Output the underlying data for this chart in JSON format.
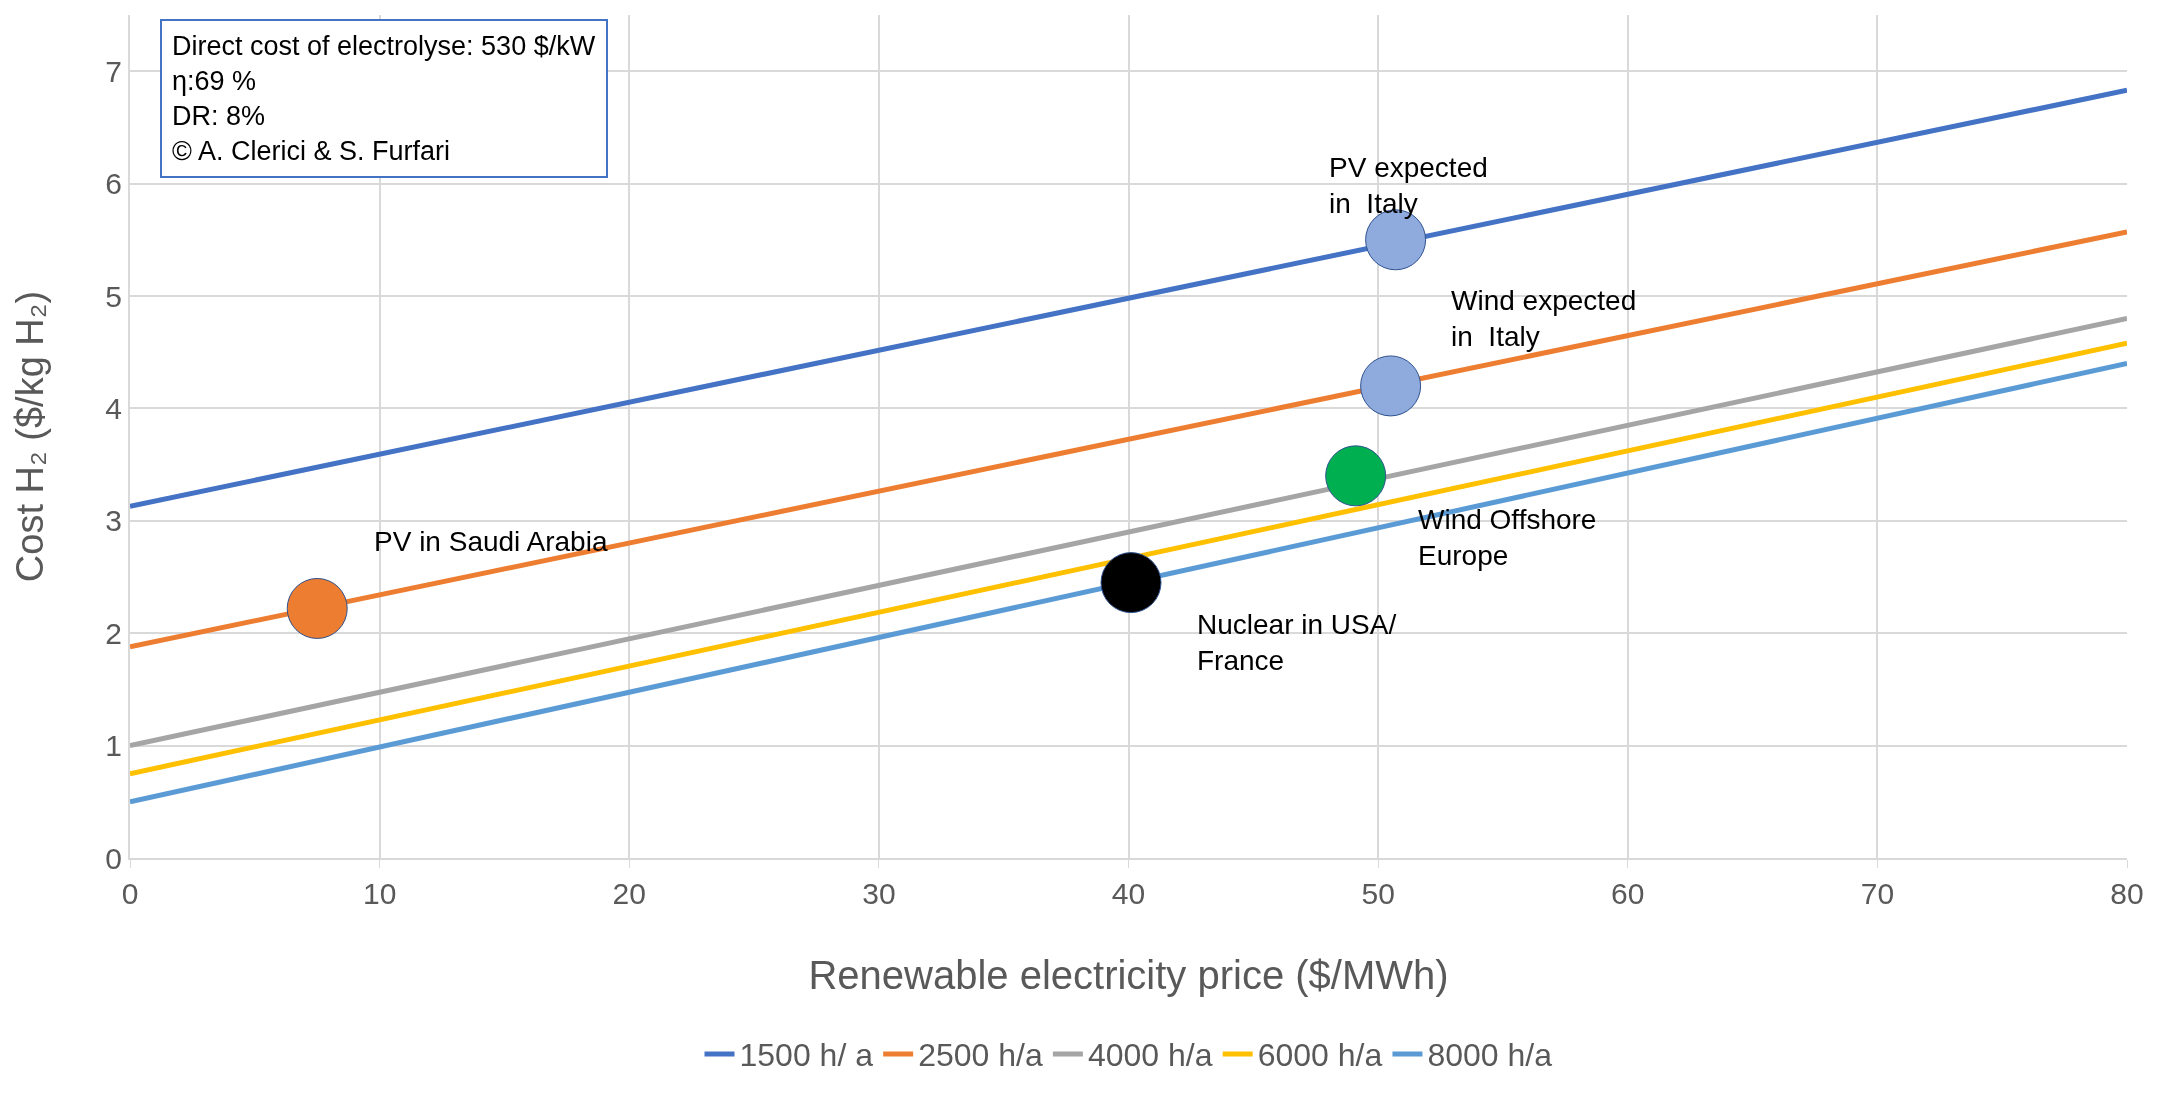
{
  "chart_data": {
    "type": "line",
    "xlabel": "Renewable electricity price ($/MWh)",
    "ylabel": "Cost H₂ ($/kg H₂)",
    "x": [
      0,
      80
    ],
    "xlim": [
      0,
      80
    ],
    "xticks": [
      0,
      10,
      20,
      30,
      40,
      50,
      60,
      70,
      80
    ],
    "ylim": [
      0,
      7.5
    ],
    "yticks": [
      0,
      1,
      2,
      3,
      4,
      5,
      6,
      7
    ],
    "grid": true,
    "legend": "bottom",
    "marker": "none",
    "line_style": "solid",
    "series": [
      {
        "name": "1500 h/ a",
        "color": "#4472c4",
        "values": [
          3.13,
          6.83
        ]
      },
      {
        "name": "2500 h/a",
        "color": "#ed7d31",
        "values": [
          1.88,
          5.57
        ]
      },
      {
        "name": "4000 h/a",
        "color": "#a5a5a5",
        "values": [
          1.0,
          4.8
        ]
      },
      {
        "name": "6000 h/a",
        "color": "#ffc000",
        "values": [
          0.75,
          4.58
        ]
      },
      {
        "name": "8000 h/a",
        "color": "#5b9bd5",
        "values": [
          0.5,
          4.4
        ]
      },
      {
        "type": "scatter",
        "marker": "circle",
        "color": "#8faadc",
        "x": [
          50.7
        ],
        "values": [
          5.5
        ]
      },
      {
        "type": "scatter",
        "marker": "circle",
        "color": "#8faadc",
        "x": [
          50.5
        ],
        "values": [
          4.2
        ]
      },
      {
        "type": "scatter",
        "marker": "circle",
        "color": "#00b050",
        "x": [
          49.1
        ],
        "values": [
          3.4
        ]
      },
      {
        "type": "scatter",
        "marker": "circle",
        "color": "#000000",
        "x": [
          40.1
        ],
        "values": [
          2.45
        ]
      },
      {
        "type": "scatter",
        "marker": "circle",
        "color": "#ed7d31",
        "x": [
          7.5
        ],
        "values": [
          2.22
        ]
      }
    ],
    "annotations": [
      "Direct cost of electrolyse: 530 $/kW",
      "η:69 %",
      "DR: 8%",
      "© A. Clerici & S. Furfari",
      "PV expected\nin  Italy",
      "Wind expected\nin  Italy",
      "Wind Offshore\nEurope",
      "Nuclear in USA/\nFrance",
      "PV in Saudi Arabia"
    ]
  }
}
